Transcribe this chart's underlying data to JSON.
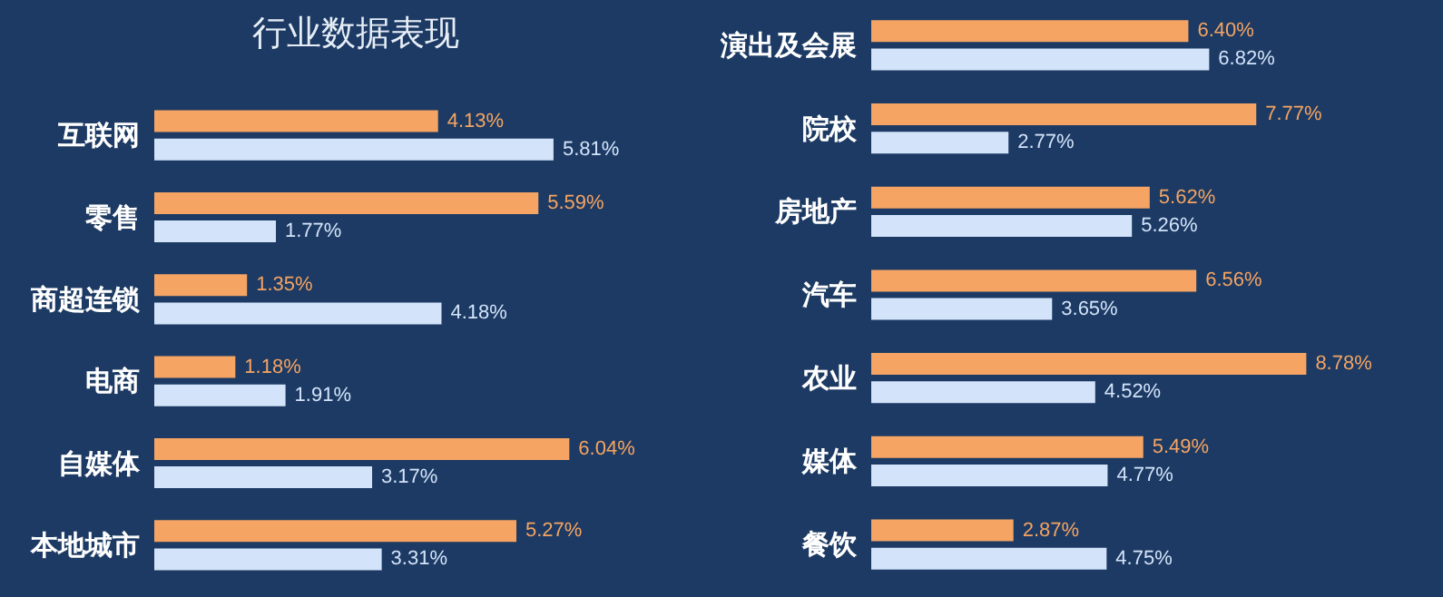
{
  "chart_data": [
    {
      "type": "bar",
      "orientation": "horizontal",
      "title": "行业数据表现",
      "categories": [
        "互联网",
        "零售",
        "商超连锁",
        "电商",
        "自媒体",
        "本地城市"
      ],
      "series": [
        {
          "color": "#f5a463",
          "values": [
            4.13,
            5.59,
            1.35,
            1.18,
            6.04,
            5.27
          ],
          "value_labels": [
            "4.13%",
            "5.59%",
            "1.35%",
            "1.18%",
            "6.04%",
            "5.27%"
          ]
        },
        {
          "color": "#d3e3fa",
          "values": [
            5.81,
            1.77,
            4.18,
            1.91,
            3.17,
            3.31
          ],
          "value_labels": [
            "5.81%",
            "1.77%",
            "4.18%",
            "1.91%",
            "3.17%",
            "3.31%"
          ]
        }
      ]
    },
    {
      "type": "bar",
      "orientation": "horizontal",
      "categories": [
        "演出及会展",
        "院校",
        "房地产",
        "汽车",
        "农业",
        "媒体",
        "餐饮"
      ],
      "series": [
        {
          "color": "#f5a463",
          "values": [
            6.4,
            7.77,
            5.62,
            6.56,
            8.78,
            5.49,
            2.87
          ],
          "value_labels": [
            "6.40%",
            "7.77%",
            "5.62%",
            "6.56%",
            "8.78%",
            "5.49%",
            "2.87%"
          ]
        },
        {
          "color": "#d3e3fa",
          "values": [
            6.82,
            2.77,
            5.26,
            3.65,
            4.52,
            4.77,
            4.75
          ],
          "value_labels": [
            "6.82%",
            "2.77%",
            "5.26%",
            "3.65%",
            "4.52%",
            "4.77%",
            "4.75%"
          ]
        }
      ]
    }
  ]
}
